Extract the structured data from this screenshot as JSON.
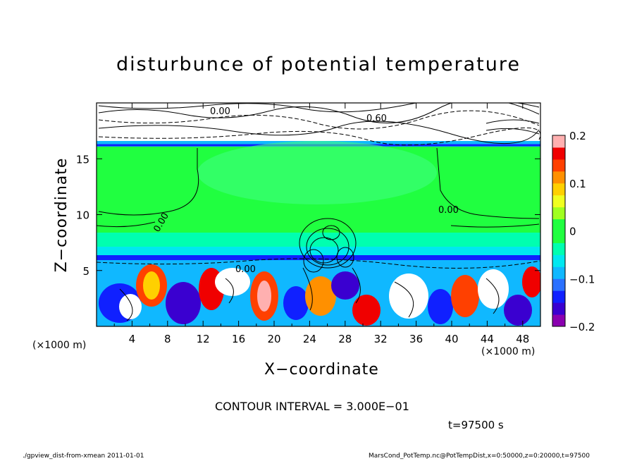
{
  "chart_data": {
    "type": "heatmap",
    "title": "disturbunce of potential temperature",
    "xlabel": "X−coordinate",
    "ylabel": "Z−coordinate",
    "x_unit_left": "(×1000 m)",
    "x_unit_right": "(×1000 m)",
    "xlim": [
      0,
      50
    ],
    "ylim": [
      0,
      20
    ],
    "x_ticks": [
      4,
      8,
      12,
      16,
      20,
      24,
      28,
      32,
      36,
      40,
      44,
      48
    ],
    "y_ticks": [
      5,
      10,
      15
    ],
    "colorbar": {
      "range": [
        -0.2,
        0.2
      ],
      "tick_values": [
        0.2,
        0.1,
        0,
        -0.1,
        -0.2
      ],
      "tick_labels": [
        "0.2",
        "0.1",
        "0",
        "−0.1",
        "−0.2"
      ],
      "colors": [
        "#8a00b0",
        "#3a00d0",
        "#1020ff",
        "#2a70ff",
        "#10b8ff",
        "#00e8f0",
        "#00ffb0",
        "#20ff40",
        "#20ff40",
        "#a0ff20",
        "#f0ff20",
        "#ffd000",
        "#ff9000",
        "#ff4000",
        "#f00000",
        "#ffb0b0"
      ]
    },
    "contour_labels": [
      "0.00",
      "0.60",
      "0.00",
      "0.00",
      "0.00"
    ],
    "contour_interval_text": "CONTOUR INTERVAL = 3.000E−01",
    "time_text": "t=97500 s"
  },
  "footer": {
    "left": "./gpview_dist-from-xmean  2011-01-01",
    "right": "MarsCond_PotTemp.nc@PotTempDist,x=0:50000,z=0:20000,t=97500"
  }
}
